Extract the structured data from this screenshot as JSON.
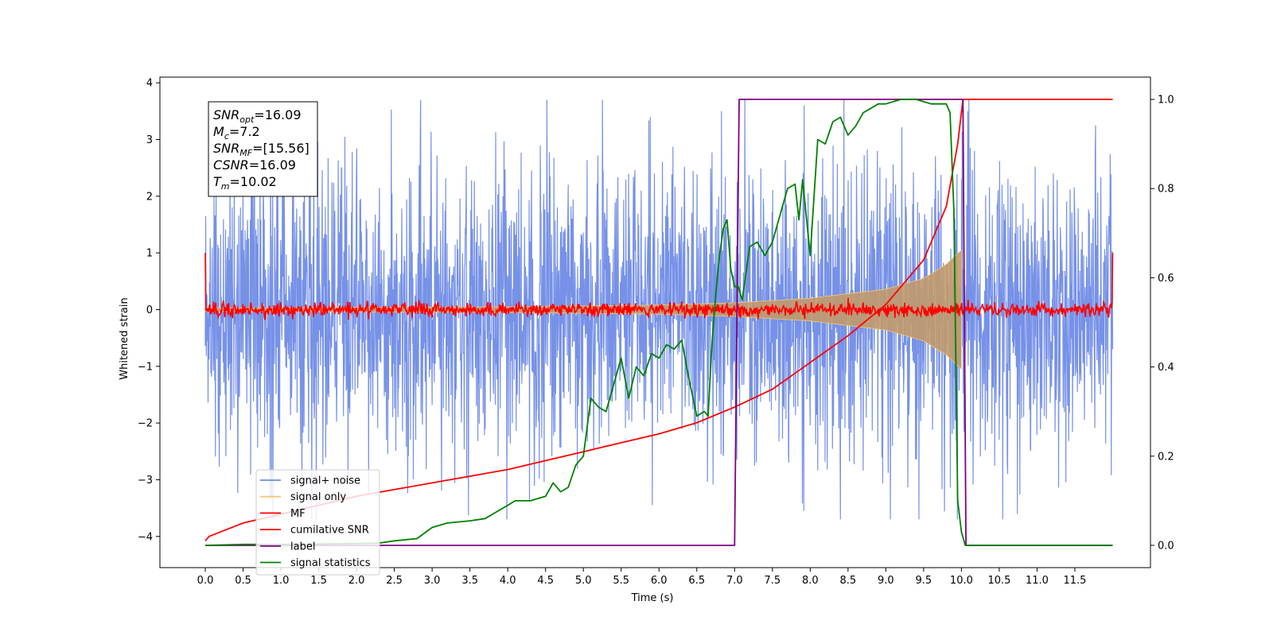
{
  "chart_data": {
    "type": "line",
    "xlabel": "Time (s)",
    "ylabel": "Whitened strain",
    "xlim": [
      -0.6,
      12.5
    ],
    "ylim": [
      -4.55,
      4.1
    ],
    "y2lim": [
      -0.05,
      1.05
    ],
    "x_ticks": [
      "0.0",
      "0.5",
      "1.0",
      "1.5",
      "2.0",
      "2.5",
      "3.0",
      "3.5",
      "4.0",
      "4.5",
      "5.0",
      "5.5",
      "6.0",
      "6.5",
      "7.0",
      "7.5",
      "8.0",
      "8.5",
      "9.0",
      "9.5",
      "10.0",
      "10.5",
      "11.0",
      "11.5"
    ],
    "y_ticks": [
      "4",
      "3",
      "2",
      "1",
      "0",
      "−1",
      "−2",
      "−3",
      "−4"
    ],
    "y2_ticks": [
      "1.0",
      "0.8",
      "0.6",
      "0.4",
      "0.2",
      "0.0"
    ],
    "annotations": [
      {
        "main": "SNR",
        "sub": "opt",
        "rest": "=16.09"
      },
      {
        "main": "M",
        "sub": "c",
        "rest": "=7.2"
      },
      {
        "main": "SNR",
        "sub": "MF",
        "rest": "=[15.56]"
      },
      {
        "main": "CSNR",
        "sub": "",
        "rest": "=16.09"
      },
      {
        "main": "T",
        "sub": "m",
        "rest": "=10.02"
      }
    ],
    "legend": [
      {
        "label": "signal+ noise",
        "color": "#6f8be6"
      },
      {
        "label": "signal only",
        "color": "#f5c77a"
      },
      {
        "label": "MF",
        "color": "#ff0000"
      },
      {
        "label": "cumilative SNR",
        "color": "#ff0000"
      },
      {
        "label": "label",
        "color": "#800080"
      },
      {
        "label": "signal statistics",
        "color": "#008000"
      }
    ],
    "legend_position": "lower-left",
    "series": [
      {
        "name": "signal+ noise",
        "axis": "left",
        "x_range": [
          0.0,
          12.0
        ],
        "amplitude_typical": 1.3,
        "amplitude_peak": 3.7
      },
      {
        "name": "signal only",
        "axis": "left",
        "envelope": {
          "x": [
            0.0,
            2.0,
            4.0,
            6.0,
            7.0,
            8.0,
            9.0,
            9.5,
            9.8,
            10.0
          ],
          "y": [
            0.03,
            0.04,
            0.05,
            0.08,
            0.12,
            0.2,
            0.36,
            0.55,
            0.8,
            1.05
          ]
        }
      },
      {
        "name": "MF",
        "axis": "left",
        "x_range": [
          0.0,
          12.0
        ],
        "level": 0.0,
        "noise": 0.06,
        "edge_value": 1.0
      },
      {
        "name": "cumilative SNR",
        "axis": "right",
        "x": [
          0.0,
          0.05,
          0.5,
          1.0,
          1.5,
          2.0,
          2.5,
          3.0,
          3.5,
          4.0,
          4.5,
          5.0,
          5.5,
          6.0,
          6.5,
          7.0,
          7.5,
          8.0,
          8.5,
          9.0,
          9.5,
          9.8,
          9.95,
          10.02,
          10.1,
          12.0
        ],
        "y": [
          0.01,
          0.02,
          0.05,
          0.07,
          0.09,
          0.11,
          0.125,
          0.14,
          0.155,
          0.17,
          0.19,
          0.21,
          0.23,
          0.25,
          0.275,
          0.31,
          0.35,
          0.41,
          0.47,
          0.54,
          0.64,
          0.76,
          0.9,
          1.0,
          1.0,
          1.0
        ]
      },
      {
        "name": "label",
        "axis": "right",
        "x": [
          0.0,
          7.0,
          7.06,
          10.02,
          10.06,
          12.0
        ],
        "y": [
          0.0,
          0.0,
          1.0,
          1.0,
          0.0,
          0.0
        ]
      },
      {
        "name": "signal statistics",
        "axis": "right",
        "x": [
          0.0,
          0.5,
          1.0,
          1.5,
          2.0,
          2.3,
          2.5,
          2.8,
          3.0,
          3.2,
          3.5,
          3.7,
          3.9,
          4.0,
          4.1,
          4.3,
          4.5,
          4.6,
          4.7,
          4.8,
          4.9,
          5.0,
          5.1,
          5.2,
          5.3,
          5.4,
          5.5,
          5.6,
          5.7,
          5.8,
          5.9,
          6.0,
          6.1,
          6.2,
          6.3,
          6.4,
          6.5,
          6.6,
          6.65,
          6.7,
          6.75,
          6.8,
          6.85,
          6.9,
          6.95,
          7.0,
          7.05,
          7.1,
          7.2,
          7.3,
          7.4,
          7.5,
          7.6,
          7.7,
          7.8,
          7.85,
          7.9,
          8.0,
          8.1,
          8.2,
          8.3,
          8.4,
          8.5,
          8.6,
          8.7,
          8.8,
          8.9,
          9.0,
          9.2,
          9.4,
          9.6,
          9.8,
          9.85,
          9.9,
          9.95,
          10.0,
          10.05,
          10.1,
          11.0,
          11.5,
          12.0
        ],
        "y": [
          0.0,
          0.002,
          0.002,
          0.003,
          0.004,
          0.005,
          0.01,
          0.015,
          0.04,
          0.05,
          0.055,
          0.06,
          0.08,
          0.09,
          0.1,
          0.1,
          0.11,
          0.14,
          0.12,
          0.13,
          0.18,
          0.2,
          0.33,
          0.31,
          0.3,
          0.36,
          0.42,
          0.33,
          0.4,
          0.38,
          0.43,
          0.42,
          0.45,
          0.44,
          0.46,
          0.37,
          0.29,
          0.3,
          0.29,
          0.45,
          0.56,
          0.65,
          0.71,
          0.73,
          0.62,
          0.58,
          0.58,
          0.55,
          0.67,
          0.68,
          0.65,
          0.68,
          0.74,
          0.8,
          0.81,
          0.73,
          0.82,
          0.65,
          0.91,
          0.9,
          0.95,
          0.96,
          0.92,
          0.94,
          0.97,
          0.98,
          0.99,
          0.99,
          1.0,
          1.0,
          0.99,
          0.99,
          0.97,
          0.75,
          0.1,
          0.03,
          0.0,
          0.0,
          0.0,
          0.0,
          0.0
        ]
      }
    ]
  }
}
